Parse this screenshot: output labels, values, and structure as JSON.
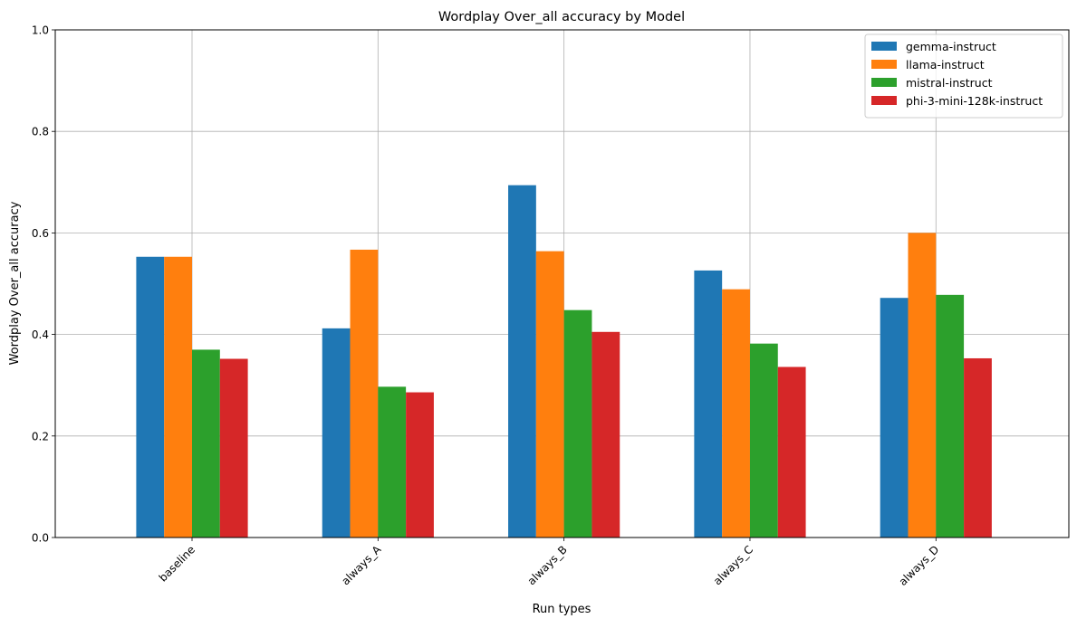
{
  "chart_data": {
    "type": "bar",
    "title": "Wordplay Over_all accuracy by Model",
    "xlabel": "Run types",
    "ylabel": "Wordplay Over_all accuracy",
    "ylim": [
      0,
      1
    ],
    "yticks": [
      "0.0",
      "0.2",
      "0.4",
      "0.6",
      "0.8",
      "1.0"
    ],
    "categories": [
      "baseline",
      "always_A",
      "always_B",
      "always_C",
      "always_D"
    ],
    "grid": true,
    "legend_position": "top-right",
    "series": [
      {
        "name": "gemma-instruct",
        "color": "#1f77b4",
        "values": [
          0.553,
          0.412,
          0.694,
          0.526,
          0.472
        ]
      },
      {
        "name": "llama-instruct",
        "color": "#ff7f0e",
        "values": [
          0.553,
          0.567,
          0.564,
          0.489,
          0.6
        ]
      },
      {
        "name": "mistral-instruct",
        "color": "#2ca02c",
        "values": [
          0.37,
          0.297,
          0.448,
          0.382,
          0.478
        ]
      },
      {
        "name": "phi-3-mini-128k-instruct",
        "color": "#d62728",
        "values": [
          0.352,
          0.286,
          0.405,
          0.336,
          0.353
        ]
      }
    ]
  }
}
